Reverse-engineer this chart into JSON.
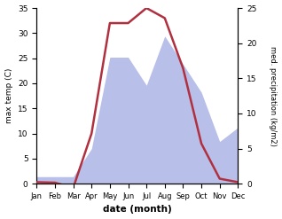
{
  "months": [
    "Jan",
    "Feb",
    "Mar",
    "Apr",
    "May",
    "Jun",
    "Jul",
    "Aug",
    "Sep",
    "Oct",
    "Nov",
    "Dec"
  ],
  "temperature": [
    0.3,
    0.2,
    -0.8,
    10.0,
    32.0,
    32.0,
    35.0,
    33.0,
    23.0,
    8.0,
    1.0,
    0.3
  ],
  "precipitation": [
    1.0,
    1.0,
    1.0,
    5.0,
    18.0,
    18.0,
    14.0,
    21.0,
    17.0,
    13.0,
    6.0,
    8.0
  ],
  "temp_color": "#b03040",
  "precip_fill_color": "#b8bfe8",
  "ylim_temp": [
    0,
    35
  ],
  "ylim_precip": [
    0,
    25
  ],
  "yticks_temp": [
    0,
    5,
    10,
    15,
    20,
    25,
    30,
    35
  ],
  "yticks_precip": [
    0,
    5,
    10,
    15,
    20,
    25
  ],
  "xlabel": "date (month)",
  "ylabel_left": "max temp (C)",
  "ylabel_right": "med. precipitation (kg/m2)",
  "fig_width": 3.18,
  "fig_height": 2.47,
  "dpi": 100
}
